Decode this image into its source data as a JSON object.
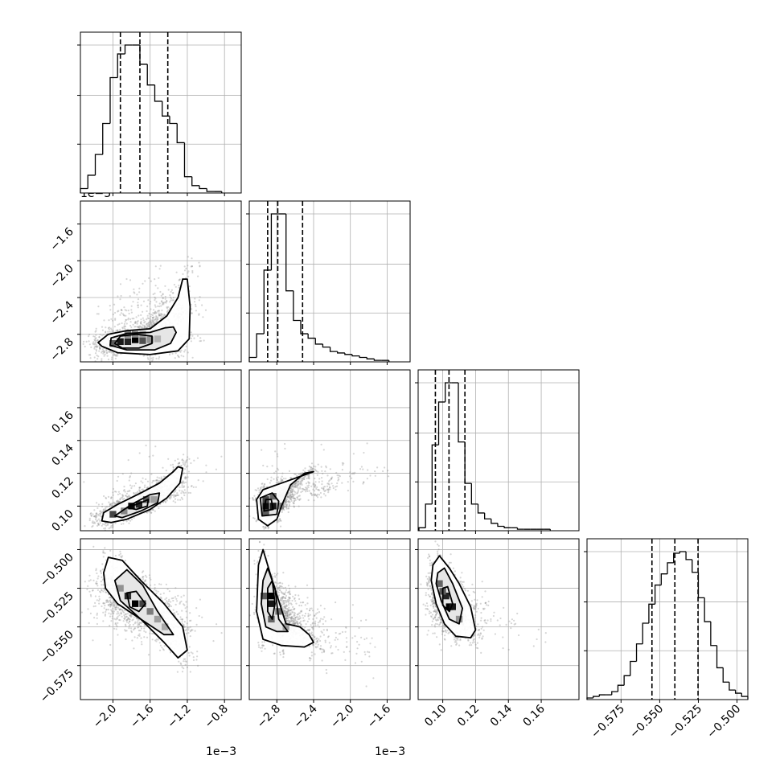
{
  "chart_data": {
    "type": "corner",
    "grid": true,
    "scatter_color": "#8a8a8a",
    "contour_color": "#000000",
    "offset_labels": [
      "1e−3",
      "1e−3",
      "1e−3"
    ],
    "params": [
      {
        "range": [
          -2.35,
          -0.62
        ],
        "ticks": [
          -2.0,
          -1.6,
          -1.2,
          -0.8
        ],
        "tick_labels": [
          "−2.0",
          "−1.6",
          "−1.2",
          "−0.8"
        ],
        "quantiles": [
          -1.92,
          -1.71,
          -1.41
        ],
        "hist": {
          "edges": [
            -2.35,
            -2.27,
            -2.19,
            -2.11,
            -2.03,
            -1.95,
            -1.87,
            -1.79,
            -1.71,
            -1.63,
            -1.55,
            -1.47,
            -1.39,
            -1.31,
            -1.23,
            -1.15,
            -1.07,
            -0.99,
            -0.91,
            -0.83
          ],
          "counts": [
            3,
            12,
            26,
            47,
            78,
            94,
            100,
            100,
            87,
            73,
            62,
            52,
            47,
            34,
            11,
            5,
            3,
            1,
            1
          ]
        }
      },
      {
        "range": [
          -3.1,
          -1.35
        ],
        "ticks": [
          -2.8,
          -2.4,
          -2.0,
          -1.6
        ],
        "tick_labels": [
          "−2.8",
          "−2.4",
          "−2.0",
          "−1.6"
        ],
        "quantiles": [
          -2.9,
          -2.79,
          -2.52
        ],
        "hist": {
          "edges": [
            -3.1,
            -3.02,
            -2.94,
            -2.86,
            -2.78,
            -2.7,
            -2.62,
            -2.54,
            -2.46,
            -2.38,
            -2.3,
            -2.22,
            -2.14,
            -2.06,
            -1.98,
            -1.9,
            -1.82,
            -1.74,
            -1.66,
            -1.58
          ],
          "counts": [
            3,
            19,
            62,
            100,
            100,
            48,
            28,
            19,
            16,
            12,
            10,
            7,
            6,
            5,
            4,
            3,
            2,
            1,
            1
          ]
        }
      },
      {
        "range": [
          0.085,
          0.183
        ],
        "ticks": [
          0.1,
          0.12,
          0.14,
          0.16
        ],
        "tick_labels": [
          "0.10",
          "0.12",
          "0.14",
          "0.16"
        ],
        "quantiles": [
          0.0955,
          0.1038,
          0.1135
        ],
        "hist": {
          "edges": [
            0.0855,
            0.0895,
            0.0935,
            0.0975,
            0.1015,
            0.1055,
            0.1095,
            0.1135,
            0.1175,
            0.1215,
            0.1255,
            0.1295,
            0.1335,
            0.1375,
            0.1415,
            0.1455,
            0.1495,
            0.1535,
            0.1575,
            0.1615,
            0.1655
          ],
          "counts": [
            2,
            18,
            58,
            87,
            100,
            100,
            60,
            32,
            18,
            12,
            8,
            5,
            3,
            2,
            2,
            1,
            1,
            1,
            1,
            1
          ]
        }
      },
      {
        "range": [
          -0.597,
          -0.493
        ],
        "ticks": [
          -0.575,
          -0.55,
          -0.525,
          -0.5
        ],
        "tick_labels": [
          "−0.575",
          "−0.550",
          "−0.525",
          "−0.500"
        ],
        "quantiles": [
          -0.555,
          -0.5402,
          -0.5252
        ],
        "hist": {
          "edges": [
            -0.597,
            -0.593,
            -0.589,
            -0.585,
            -0.581,
            -0.577,
            -0.573,
            -0.569,
            -0.565,
            -0.561,
            -0.557,
            -0.553,
            -0.549,
            -0.545,
            -0.541,
            -0.537,
            -0.533,
            -0.529,
            -0.525,
            -0.521,
            -0.517,
            -0.513,
            -0.509,
            -0.505,
            -0.501,
            -0.497,
            -0.493
          ],
          "counts": [
            1,
            2,
            3,
            3,
            5,
            9,
            15,
            24,
            35,
            48,
            60,
            72,
            79,
            86,
            92,
            93,
            88,
            80,
            64,
            49,
            34,
            20,
            11,
            6,
            4,
            2
          ]
        }
      }
    ],
    "pairs": [
      {
        "x": 0,
        "y": 1,
        "contours": [
          [
            [
              -2.12,
              -2.93
            ],
            [
              -2.16,
              -2.89
            ],
            [
              -2.05,
              -2.8
            ],
            [
              -1.85,
              -2.76
            ],
            [
              -1.6,
              -2.74
            ],
            [
              -1.42,
              -2.6
            ],
            [
              -1.3,
              -2.4
            ],
            [
              -1.25,
              -2.2
            ],
            [
              -1.2,
              -2.2
            ],
            [
              -1.17,
              -2.5
            ],
            [
              -1.18,
              -2.85
            ],
            [
              -1.3,
              -2.98
            ],
            [
              -1.6,
              -3.02
            ],
            [
              -1.95,
              -3.0
            ]
          ],
          [
            [
              -2.03,
              -2.92
            ],
            [
              -2.02,
              -2.84
            ],
            [
              -1.85,
              -2.79
            ],
            [
              -1.6,
              -2.78
            ],
            [
              -1.44,
              -2.73
            ],
            [
              -1.35,
              -2.72
            ],
            [
              -1.32,
              -2.78
            ],
            [
              -1.38,
              -2.9
            ],
            [
              -1.55,
              -2.97
            ],
            [
              -1.85,
              -2.97
            ]
          ],
          [
            [
              -1.98,
              -2.9
            ],
            [
              -1.92,
              -2.82
            ],
            [
              -1.75,
              -2.8
            ],
            [
              -1.58,
              -2.82
            ],
            [
              -1.58,
              -2.9
            ],
            [
              -1.72,
              -2.95
            ],
            [
              -1.9,
              -2.95
            ]
          ]
        ],
        "density": [
          [
            -2.0,
            -2.9,
            0.6
          ],
          [
            -1.92,
            -2.88,
            0.9
          ],
          [
            -1.84,
            -2.88,
            0.85
          ],
          [
            -1.76,
            -2.86,
            1.0
          ],
          [
            -1.68,
            -2.87,
            0.65
          ],
          [
            -1.6,
            -2.86,
            0.35
          ],
          [
            -1.52,
            -2.85,
            0.2
          ],
          [
            -1.84,
            -2.8,
            0.45
          ],
          [
            -1.76,
            -2.8,
            0.4
          ],
          [
            -1.68,
            -2.8,
            0.3
          ]
        ]
      },
      {
        "x": 0,
        "y": 2,
        "contours": [
          [
            [
              -2.12,
              0.091
            ],
            [
              -2.1,
              0.096
            ],
            [
              -1.95,
              0.101
            ],
            [
              -1.7,
              0.108
            ],
            [
              -1.5,
              0.114
            ],
            [
              -1.35,
              0.121
            ],
            [
              -1.3,
              0.124
            ],
            [
              -1.25,
              0.123
            ],
            [
              -1.28,
              0.114
            ],
            [
              -1.42,
              0.105
            ],
            [
              -1.6,
              0.098
            ],
            [
              -1.85,
              0.092
            ],
            [
              -2.02,
              0.09
            ]
          ],
          [
            [
              -1.98,
              0.094
            ],
            [
              -1.8,
              0.101
            ],
            [
              -1.6,
              0.107
            ],
            [
              -1.5,
              0.108
            ],
            [
              -1.52,
              0.102
            ],
            [
              -1.7,
              0.097
            ],
            [
              -1.9,
              0.093
            ]
          ],
          [
            [
              -1.85,
              0.099
            ],
            [
              -1.7,
              0.102
            ],
            [
              -1.62,
              0.104
            ],
            [
              -1.63,
              0.1
            ],
            [
              -1.75,
              0.098
            ]
          ]
        ],
        "density": [
          [
            -2.0,
            0.095,
            0.7
          ],
          [
            -1.8,
            0.1,
            0.95
          ],
          [
            -1.72,
            0.101,
            0.85
          ],
          [
            -1.64,
            0.104,
            0.6
          ],
          [
            -1.56,
            0.104,
            0.3
          ],
          [
            -1.88,
            0.097,
            0.4
          ]
        ]
      },
      {
        "x": 1,
        "y": 2,
        "contours": [
          [
            [
              -3.0,
              0.092
            ],
            [
              -3.02,
              0.104
            ],
            [
              -2.95,
              0.11
            ],
            [
              -2.75,
              0.114
            ],
            [
              -2.5,
              0.119
            ],
            [
              -2.4,
              0.121
            ],
            [
              -2.5,
              0.12
            ],
            [
              -2.65,
              0.113
            ],
            [
              -2.75,
              0.1
            ],
            [
              -2.8,
              0.092
            ],
            [
              -2.9,
              0.088
            ]
          ],
          [
            [
              -2.96,
              0.094
            ],
            [
              -2.98,
              0.105
            ],
            [
              -2.85,
              0.108
            ],
            [
              -2.78,
              0.103
            ],
            [
              -2.8,
              0.095
            ]
          ],
          [
            [
              -2.94,
              0.097
            ],
            [
              -2.92,
              0.104
            ],
            [
              -2.86,
              0.104
            ],
            [
              -2.84,
              0.098
            ]
          ]
        ],
        "density": [
          [
            -2.92,
            0.1,
            0.95
          ],
          [
            -2.84,
            0.1,
            0.9
          ],
          [
            -2.92,
            0.104,
            0.7
          ],
          [
            -2.84,
            0.106,
            0.55
          ],
          [
            -2.76,
            0.1,
            0.4
          ],
          [
            -2.92,
            0.096,
            0.6
          ]
        ]
      },
      {
        "x": 0,
        "y": 3,
        "contours": [
          [
            [
              -2.1,
              -0.515
            ],
            [
              -2.05,
              -0.505
            ],
            [
              -1.9,
              -0.507
            ],
            [
              -1.7,
              -0.52
            ],
            [
              -1.45,
              -0.535
            ],
            [
              -1.25,
              -0.55
            ],
            [
              -1.2,
              -0.565
            ],
            [
              -1.3,
              -0.57
            ],
            [
              -1.45,
              -0.56
            ],
            [
              -1.7,
              -0.545
            ],
            [
              -1.95,
              -0.535
            ],
            [
              -2.08,
              -0.525
            ]
          ],
          [
            [
              -1.98,
              -0.52
            ],
            [
              -1.85,
              -0.513
            ],
            [
              -1.68,
              -0.523
            ],
            [
              -1.52,
              -0.54
            ],
            [
              -1.35,
              -0.555
            ],
            [
              -1.45,
              -0.555
            ],
            [
              -1.7,
              -0.545
            ],
            [
              -1.92,
              -0.533
            ]
          ],
          [
            [
              -1.85,
              -0.528
            ],
            [
              -1.75,
              -0.527
            ],
            [
              -1.65,
              -0.535
            ],
            [
              -1.72,
              -0.54
            ],
            [
              -1.82,
              -0.537
            ]
          ]
        ],
        "density": [
          [
            -1.84,
            -0.53,
            0.8
          ],
          [
            -1.76,
            -0.535,
            1.0
          ],
          [
            -1.68,
            -0.535,
            0.7
          ],
          [
            -1.6,
            -0.54,
            0.45
          ],
          [
            -1.52,
            -0.545,
            0.3
          ],
          [
            -1.92,
            -0.525,
            0.35
          ],
          [
            -1.44,
            -0.55,
            0.25
          ]
        ]
      },
      {
        "x": 1,
        "y": 3,
        "contours": [
          [
            [
              -3.0,
              -0.51
            ],
            [
              -2.95,
              -0.5
            ],
            [
              -2.85,
              -0.52
            ],
            [
              -2.7,
              -0.548
            ],
            [
              -2.55,
              -0.55
            ],
            [
              -2.45,
              -0.555
            ],
            [
              -2.4,
              -0.56
            ],
            [
              -2.5,
              -0.563
            ],
            [
              -2.75,
              -0.562
            ],
            [
              -2.95,
              -0.558
            ],
            [
              -3.02,
              -0.54
            ]
          ],
          [
            [
              -2.95,
              -0.52
            ],
            [
              -2.9,
              -0.512
            ],
            [
              -2.82,
              -0.525
            ],
            [
              -2.78,
              -0.545
            ],
            [
              -2.68,
              -0.553
            ],
            [
              -2.8,
              -0.553
            ],
            [
              -2.92,
              -0.55
            ],
            [
              -2.97,
              -0.535
            ]
          ],
          [
            [
              -2.9,
              -0.525
            ],
            [
              -2.85,
              -0.52
            ],
            [
              -2.82,
              -0.535
            ],
            [
              -2.85,
              -0.545
            ],
            [
              -2.9,
              -0.54
            ]
          ]
        ],
        "density": [
          [
            -2.86,
            -0.53,
            1.0
          ],
          [
            -2.86,
            -0.535,
            0.9
          ],
          [
            -2.94,
            -0.53,
            0.6
          ],
          [
            -2.78,
            -0.54,
            0.5
          ],
          [
            -2.86,
            -0.545,
            0.55
          ],
          [
            -2.7,
            -0.55,
            0.3
          ]
        ]
      },
      {
        "x": 2,
        "y": 3,
        "contours": [
          [
            [
              0.094,
              -0.51
            ],
            [
              0.098,
              -0.504
            ],
            [
              0.104,
              -0.512
            ],
            [
              0.11,
              -0.522
            ],
            [
              0.117,
              -0.537
            ],
            [
              0.12,
              -0.552
            ],
            [
              0.117,
              -0.557
            ],
            [
              0.108,
              -0.556
            ],
            [
              0.101,
              -0.548
            ],
            [
              0.096,
              -0.535
            ],
            [
              0.093,
              -0.52
            ]
          ],
          [
            [
              0.097,
              -0.515
            ],
            [
              0.101,
              -0.512
            ],
            [
              0.106,
              -0.522
            ],
            [
              0.112,
              -0.538
            ],
            [
              0.11,
              -0.548
            ],
            [
              0.104,
              -0.545
            ],
            [
              0.099,
              -0.533
            ],
            [
              0.096,
              -0.522
            ]
          ],
          [
            [
              0.1,
              -0.525
            ],
            [
              0.103,
              -0.524
            ],
            [
              0.106,
              -0.535
            ],
            [
              0.104,
              -0.54
            ],
            [
              0.1,
              -0.536
            ]
          ]
        ],
        "density": [
          [
            0.102,
            -0.53,
            0.85
          ],
          [
            0.104,
            -0.537,
            1.0
          ],
          [
            0.106,
            -0.537,
            0.9
          ],
          [
            0.098,
            -0.522,
            0.55
          ],
          [
            0.11,
            -0.545,
            0.35
          ],
          [
            0.1,
            -0.527,
            0.6
          ]
        ]
      }
    ]
  }
}
